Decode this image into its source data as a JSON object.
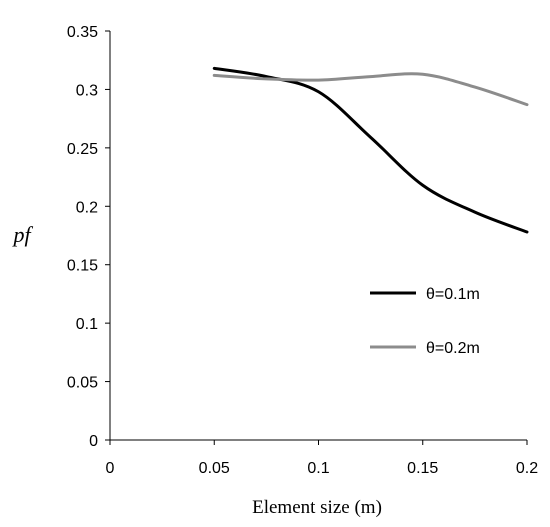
{
  "chart_data": {
    "type": "line",
    "xlabel": "Element size (m)",
    "ylabel": "pf",
    "xlim": [
      0,
      0.2
    ],
    "ylim": [
      0,
      0.35
    ],
    "x_ticks": [
      "0",
      "0.05",
      "0.1",
      "0.15",
      "0.2"
    ],
    "y_ticks": [
      "0",
      "0.05",
      "0.1",
      "0.15",
      "0.2",
      "0.25",
      "0.3",
      "0.35"
    ],
    "grid": false,
    "legend_position": "right",
    "series": [
      {
        "name": "θ=0.1m",
        "color": "#000000",
        "x": [
          0.05,
          0.075,
          0.1,
          0.125,
          0.15,
          0.175,
          0.2
        ],
        "y": [
          0.318,
          0.311,
          0.298,
          0.259,
          0.218,
          0.195,
          0.178
        ]
      },
      {
        "name": "θ=0.2m",
        "color": "#8c8c8c",
        "x": [
          0.05,
          0.075,
          0.1,
          0.125,
          0.15,
          0.175,
          0.2
        ],
        "y": [
          0.312,
          0.309,
          0.308,
          0.311,
          0.313,
          0.302,
          0.287
        ]
      }
    ]
  }
}
